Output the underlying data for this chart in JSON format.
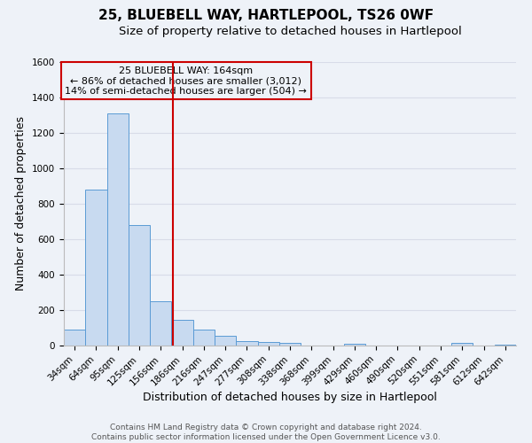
{
  "title": "25, BLUEBELL WAY, HARTLEPOOL, TS26 0WF",
  "subtitle": "Size of property relative to detached houses in Hartlepool",
  "xlabel": "Distribution of detached houses by size in Hartlepool",
  "ylabel": "Number of detached properties",
  "bin_labels": [
    "34sqm",
    "64sqm",
    "95sqm",
    "125sqm",
    "156sqm",
    "186sqm",
    "216sqm",
    "247sqm",
    "277sqm",
    "308sqm",
    "338sqm",
    "368sqm",
    "399sqm",
    "429sqm",
    "460sqm",
    "490sqm",
    "520sqm",
    "551sqm",
    "581sqm",
    "612sqm",
    "642sqm"
  ],
  "bar_heights": [
    88,
    880,
    1310,
    680,
    250,
    143,
    88,
    55,
    25,
    18,
    15,
    0,
    0,
    10,
    0,
    0,
    0,
    0,
    15,
    0,
    5
  ],
  "bar_color": "#c8daf0",
  "bar_edgecolor": "#5b9bd5",
  "vline_x": 4.57,
  "vline_color": "#cc0000",
  "ylim": [
    0,
    1600
  ],
  "yticks": [
    0,
    200,
    400,
    600,
    800,
    1000,
    1200,
    1400,
    1600
  ],
  "annotation_title": "25 BLUEBELL WAY: 164sqm",
  "annotation_line1": "← 86% of detached houses are smaller (3,012)",
  "annotation_line2": "14% of semi-detached houses are larger (504) →",
  "annotation_box_edgecolor": "#cc0000",
  "footer1": "Contains HM Land Registry data © Crown copyright and database right 2024.",
  "footer2": "Contains public sector information licensed under the Open Government Licence v3.0.",
  "background_color": "#eef2f8",
  "plot_bg_color": "#eef2f8",
  "grid_color": "#d8dce8",
  "title_fontsize": 11,
  "subtitle_fontsize": 9.5,
  "axis_label_fontsize": 9,
  "tick_fontsize": 7.5,
  "annotation_fontsize": 8,
  "footer_fontsize": 6.5
}
